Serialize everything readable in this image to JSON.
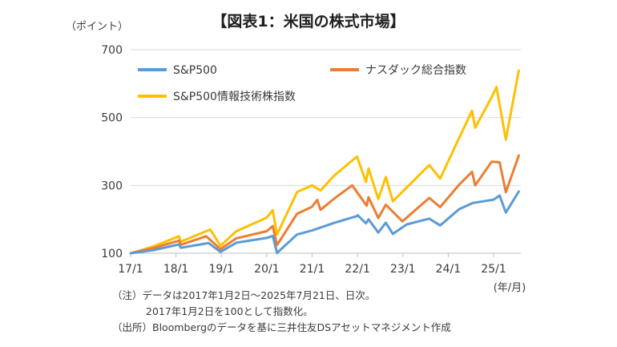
{
  "title": "【図表1：米国の株式市場】",
  "chart_data": {
    "type": "line",
    "title": "【図表1：米国の株式市場】",
    "y_unit_label": "（ポイント）",
    "x_unit_label": "(年/月)",
    "ylim": [
      100,
      700
    ],
    "y_ticks": [
      "100",
      "300",
      "500",
      "700"
    ],
    "x_ticks": [
      "17/1",
      "18/1",
      "19/1",
      "20/1",
      "21/1",
      "22/1",
      "23/1",
      "24/1",
      "25/1"
    ],
    "x_range": [
      "2017-01-02",
      "2025-07-21"
    ],
    "grid": "horizontal",
    "legend_position": "top-left",
    "colors": {
      "sp500": "#5b9bd5",
      "nasdaq": "#ed7d31",
      "it": "#ffc000"
    },
    "series": [
      {
        "name": "S&P500",
        "key": "sp500",
        "points": [
          [
            "2017-01-02",
            100
          ],
          [
            "2017-07-01",
            109
          ],
          [
            "2018-01-25",
            126
          ],
          [
            "2018-02-10",
            116
          ],
          [
            "2018-09-20",
            130
          ],
          [
            "2018-12-24",
            104
          ],
          [
            "2019-04-30",
            131
          ],
          [
            "2019-12-31",
            145
          ],
          [
            "2020-02-19",
            151
          ],
          [
            "2020-03-23",
            101
          ],
          [
            "2020-08-31",
            155
          ],
          [
            "2020-12-31",
            167
          ],
          [
            "2021-06-30",
            190
          ],
          [
            "2021-12-31",
            210
          ],
          [
            "2022-01-03",
            212
          ],
          [
            "2022-03-08",
            188
          ],
          [
            "2022-03-29",
            200
          ],
          [
            "2022-06-16",
            161
          ],
          [
            "2022-08-16",
            190
          ],
          [
            "2022-10-12",
            157
          ],
          [
            "2023-02-02",
            185
          ],
          [
            "2023-07-31",
            202
          ],
          [
            "2023-10-27",
            182
          ],
          [
            "2024-03-28",
            230
          ],
          [
            "2024-07-16",
            248
          ],
          [
            "2024-12-31",
            258
          ],
          [
            "2025-02-19",
            270
          ],
          [
            "2025-04-08",
            220
          ],
          [
            "2025-07-21",
            282
          ]
        ]
      },
      {
        "name": "ナスダック総合指数",
        "key": "nasdaq",
        "points": [
          [
            "2017-01-02",
            100
          ],
          [
            "2017-07-01",
            115
          ],
          [
            "2018-01-25",
            137
          ],
          [
            "2018-02-10",
            125
          ],
          [
            "2018-08-30",
            150
          ],
          [
            "2018-12-24",
            112
          ],
          [
            "2019-04-30",
            144
          ],
          [
            "2019-12-31",
            165
          ],
          [
            "2020-02-19",
            180
          ],
          [
            "2020-03-23",
            124
          ],
          [
            "2020-08-31",
            216
          ],
          [
            "2020-12-31",
            237
          ],
          [
            "2021-02-12",
            257
          ],
          [
            "2021-03-08",
            228
          ],
          [
            "2021-06-30",
            262
          ],
          [
            "2021-11-19",
            300
          ],
          [
            "2022-03-14",
            240
          ],
          [
            "2022-03-29",
            265
          ],
          [
            "2022-06-16",
            204
          ],
          [
            "2022-08-16",
            243
          ],
          [
            "2022-12-28",
            194
          ],
          [
            "2023-07-31",
            263
          ],
          [
            "2023-10-27",
            236
          ],
          [
            "2024-03-28",
            302
          ],
          [
            "2024-07-10",
            340
          ],
          [
            "2024-08-05",
            300
          ],
          [
            "2024-12-16",
            370
          ],
          [
            "2025-02-19",
            368
          ],
          [
            "2025-04-08",
            280
          ],
          [
            "2025-07-21",
            388
          ]
        ]
      },
      {
        "name": "S&P500情報技術株指数",
        "key": "it",
        "points": [
          [
            "2017-01-02",
            100
          ],
          [
            "2017-07-01",
            120
          ],
          [
            "2018-01-25",
            150
          ],
          [
            "2018-02-10",
            134
          ],
          [
            "2018-10-03",
            170
          ],
          [
            "2018-12-24",
            122
          ],
          [
            "2019-04-30",
            165
          ],
          [
            "2019-12-31",
            205
          ],
          [
            "2020-02-19",
            227
          ],
          [
            "2020-03-23",
            155
          ],
          [
            "2020-08-31",
            280
          ],
          [
            "2020-12-31",
            300
          ],
          [
            "2021-03-08",
            285
          ],
          [
            "2021-06-30",
            330
          ],
          [
            "2021-12-27",
            385
          ],
          [
            "2022-03-08",
            310
          ],
          [
            "2022-03-29",
            350
          ],
          [
            "2022-06-16",
            260
          ],
          [
            "2022-08-16",
            325
          ],
          [
            "2022-10-12",
            253
          ],
          [
            "2023-07-31",
            360
          ],
          [
            "2023-10-27",
            320
          ],
          [
            "2024-03-28",
            440
          ],
          [
            "2024-07-10",
            520
          ],
          [
            "2024-08-05",
            470
          ],
          [
            "2024-12-16",
            560
          ],
          [
            "2025-01-24",
            590
          ],
          [
            "2025-04-08",
            435
          ],
          [
            "2025-07-21",
            638
          ]
        ]
      }
    ]
  },
  "notes": [
    "（注）データは2017年1月2日～2025年7月21日、日次。",
    "2017年1月2日を100として指数化。",
    "（出所）Bloombergのデータを基に三井住友DSアセットマネジメント作成"
  ]
}
